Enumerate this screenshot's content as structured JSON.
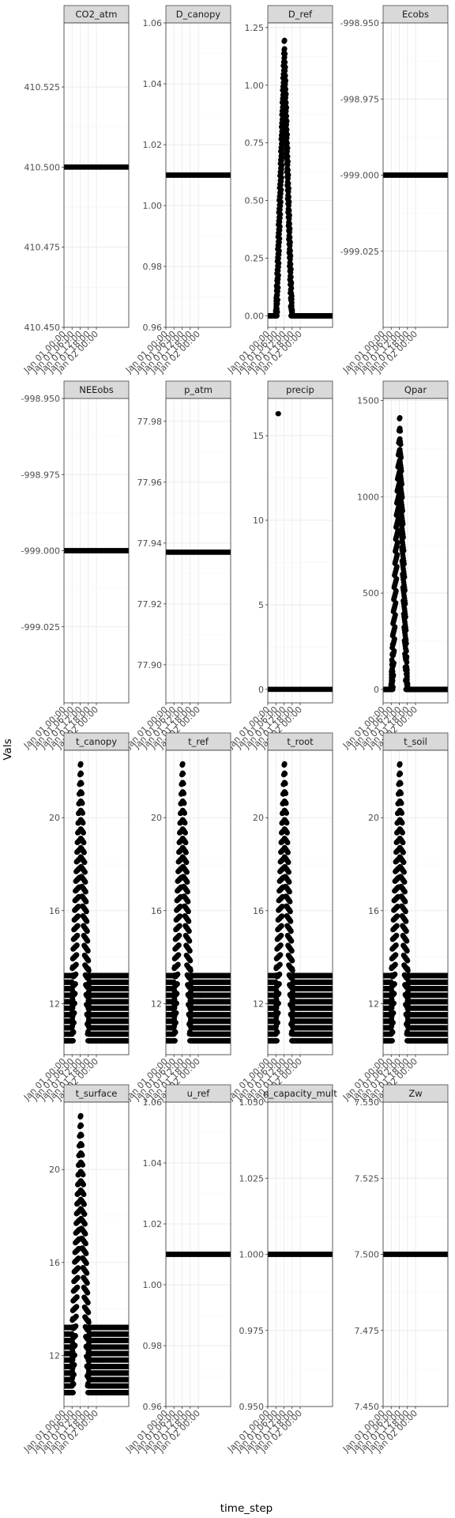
{
  "chart_data": {
    "type": "scatter",
    "xlabel": "time_step",
    "ylabel": "Vals",
    "grid": true,
    "facet_layout": {
      "rows": 4,
      "cols": 4,
      "y_scales": "free"
    },
    "x_domain": [
      0,
      48
    ],
    "x_ticks": [
      {
        "v": 0,
        "label": "Jan 01 00:00"
      },
      {
        "v": 6,
        "label": "Jan 01 06:00"
      },
      {
        "v": 12,
        "label": "Jan 01 12:00"
      },
      {
        "v": 18,
        "label": "Jan 01 18:00"
      },
      {
        "v": 24,
        "label": "Jan 02 00:00"
      }
    ],
    "colors": {
      "points": "#000000",
      "strip": "#d9d9d9",
      "grid_major": "#ebebeb",
      "grid_minor": "#f5f5f5",
      "border": "#333333"
    },
    "panels": [
      {
        "name": "CO2_atm",
        "ylim": [
          410.45,
          410.545
        ],
        "yticks": [
          {
            "v": 410.45,
            "label": "410.450"
          },
          {
            "v": 410.475,
            "label": "410.475"
          },
          {
            "v": 410.5,
            "label": "410.500"
          },
          {
            "v": 410.525,
            "label": "410.525"
          }
        ],
        "shape": "constant",
        "value": 410.5
      },
      {
        "name": "D_canopy",
        "ylim": [
          0.96,
          1.06
        ],
        "yticks": [
          {
            "v": 0.96,
            "label": "0.96"
          },
          {
            "v": 0.98,
            "label": "0.98"
          },
          {
            "v": 1.0,
            "label": "1.00"
          },
          {
            "v": 1.02,
            "label": "1.02"
          },
          {
            "v": 1.04,
            "label": "1.04"
          },
          {
            "v": 1.06,
            "label": "1.06"
          }
        ],
        "shape": "constant",
        "value": 1.01
      },
      {
        "name": "D_ref",
        "ylim": [
          -0.05,
          1.27
        ],
        "yticks": [
          {
            "v": 0.0,
            "label": "0.00"
          },
          {
            "v": 0.25,
            "label": "0.25"
          },
          {
            "v": 0.5,
            "label": "0.50"
          },
          {
            "v": 0.75,
            "label": "0.75"
          },
          {
            "v": 1.0,
            "label": "1.00"
          },
          {
            "v": 1.25,
            "label": "1.25"
          }
        ],
        "shape": "peak",
        "base": 0,
        "peak": 1.22,
        "rise_start": 5.8,
        "peak_t": 12.3,
        "fall_end": 18.2,
        "band": 0.22
      },
      {
        "name": "Ecobs",
        "ylim": [
          -999.05,
          -998.95
        ],
        "yticks": [
          {
            "v": -999.025,
            "label": "-999.025"
          },
          {
            "v": -999.0,
            "label": "-999.000"
          },
          {
            "v": -998.975,
            "label": "-998.975"
          },
          {
            "v": -998.95,
            "label": "-998.950"
          }
        ],
        "shape": "constant",
        "value": -999.0
      },
      {
        "name": "NEEobs",
        "ylim": [
          -999.05,
          -998.95
        ],
        "yticks": [
          {
            "v": -999.025,
            "label": "-999.025"
          },
          {
            "v": -999.0,
            "label": "-999.000"
          },
          {
            "v": -998.975,
            "label": "-998.975"
          },
          {
            "v": -998.95,
            "label": "-998.950"
          }
        ],
        "shape": "constant",
        "value": -999.0
      },
      {
        "name": "p_atm",
        "ylim": [
          77.8875,
          77.9875
        ],
        "yticks": [
          {
            "v": 77.9,
            "label": "77.90"
          },
          {
            "v": 77.92,
            "label": "77.92"
          },
          {
            "v": 77.94,
            "label": "77.94"
          },
          {
            "v": 77.96,
            "label": "77.96"
          },
          {
            "v": 77.98,
            "label": "77.98"
          }
        ],
        "shape": "constant",
        "value": 77.937
      },
      {
        "name": "precip",
        "ylim": [
          -0.8,
          17.2
        ],
        "yticks": [
          {
            "v": 0,
            "label": "0"
          },
          {
            "v": 5,
            "label": "5"
          },
          {
            "v": 10,
            "label": "10"
          },
          {
            "v": 15,
            "label": "15"
          }
        ],
        "shape": "precip",
        "value": 0,
        "spike_t": [
          7.5,
          8.0
        ],
        "spike_value": 16.3
      },
      {
        "name": "Qpar",
        "ylim": [
          -70,
          1510
        ],
        "yticks": [
          {
            "v": 0,
            "label": "0"
          },
          {
            "v": 500,
            "label": "500"
          },
          {
            "v": 1000,
            "label": "1000"
          },
          {
            "v": 1500,
            "label": "1500"
          }
        ],
        "shape": "peak",
        "base": 0,
        "peak": 1440,
        "rise_start": 5.8,
        "peak_t": 12.3,
        "fall_end": 18.2,
        "band": 330
      },
      {
        "name": "t_canopy",
        "ylim": [
          9.8,
          22.9
        ],
        "yticks": [
          {
            "v": 12,
            "label": "12"
          },
          {
            "v": 16,
            "label": "16"
          },
          {
            "v": 20,
            "label": "20"
          }
        ],
        "shape": "diurnal",
        "low": 10.4,
        "high": 13.2,
        "peak": 22.5,
        "rise_start": 6.0,
        "peak_t": 12.3,
        "fall_end": 18.5,
        "band": 4.0
      },
      {
        "name": "t_ref",
        "ylim": [
          9.8,
          22.9
        ],
        "yticks": [
          {
            "v": 12,
            "label": "12"
          },
          {
            "v": 16,
            "label": "16"
          },
          {
            "v": 20,
            "label": "20"
          }
        ],
        "shape": "diurnal",
        "low": 10.4,
        "high": 13.2,
        "peak": 22.5,
        "rise_start": 6.0,
        "peak_t": 12.3,
        "fall_end": 18.5,
        "band": 4.0
      },
      {
        "name": "t_root",
        "ylim": [
          9.8,
          22.9
        ],
        "yticks": [
          {
            "v": 12,
            "label": "12"
          },
          {
            "v": 16,
            "label": "16"
          },
          {
            "v": 20,
            "label": "20"
          }
        ],
        "shape": "diurnal",
        "low": 10.4,
        "high": 13.2,
        "peak": 22.5,
        "rise_start": 6.0,
        "peak_t": 12.3,
        "fall_end": 18.5,
        "band": 4.0
      },
      {
        "name": "t_soil",
        "ylim": [
          9.8,
          22.9
        ],
        "yticks": [
          {
            "v": 12,
            "label": "12"
          },
          {
            "v": 16,
            "label": "16"
          },
          {
            "v": 20,
            "label": "20"
          }
        ],
        "shape": "diurnal",
        "low": 10.4,
        "high": 13.2,
        "peak": 22.5,
        "rise_start": 6.0,
        "peak_t": 12.3,
        "fall_end": 18.5,
        "band": 4.0
      },
      {
        "name": "t_surface",
        "ylim": [
          9.8,
          22.9
        ],
        "yticks": [
          {
            "v": 12,
            "label": "12"
          },
          {
            "v": 16,
            "label": "16"
          },
          {
            "v": 20,
            "label": "20"
          }
        ],
        "shape": "diurnal",
        "low": 10.4,
        "high": 13.2,
        "peak": 22.5,
        "rise_start": 6.0,
        "peak_t": 12.3,
        "fall_end": 18.5,
        "band": 4.0
      },
      {
        "name": "u_ref",
        "ylim": [
          0.96,
          1.06
        ],
        "yticks": [
          {
            "v": 0.96,
            "label": "0.96"
          },
          {
            "v": 0.98,
            "label": "0.98"
          },
          {
            "v": 1.0,
            "label": "1.00"
          },
          {
            "v": 1.02,
            "label": "1.02"
          },
          {
            "v": 1.04,
            "label": "1.04"
          },
          {
            "v": 1.06,
            "label": "1.06"
          }
        ],
        "shape": "constant",
        "value": 1.01
      },
      {
        "name": "water_capacity_mult",
        "strip_label": "n_capacity_mult",
        "ylim": [
          0.95,
          1.05
        ],
        "yticks": [
          {
            "v": 0.95,
            "label": "0.950"
          },
          {
            "v": 0.975,
            "label": "0.975"
          },
          {
            "v": 1.0,
            "label": "1.000"
          },
          {
            "v": 1.025,
            "label": "1.025"
          },
          {
            "v": 1.05,
            "label": "1.050"
          }
        ],
        "shape": "constant",
        "value": 1.0
      },
      {
        "name": "Zw",
        "ylim": [
          7.45,
          7.55
        ],
        "yticks": [
          {
            "v": 7.45,
            "label": "7.450"
          },
          {
            "v": 7.475,
            "label": "7.475"
          },
          {
            "v": 7.5,
            "label": "7.500"
          },
          {
            "v": 7.525,
            "label": "7.525"
          },
          {
            "v": 7.55,
            "label": "7.550"
          }
        ],
        "shape": "constant",
        "value": 7.5
      }
    ]
  }
}
